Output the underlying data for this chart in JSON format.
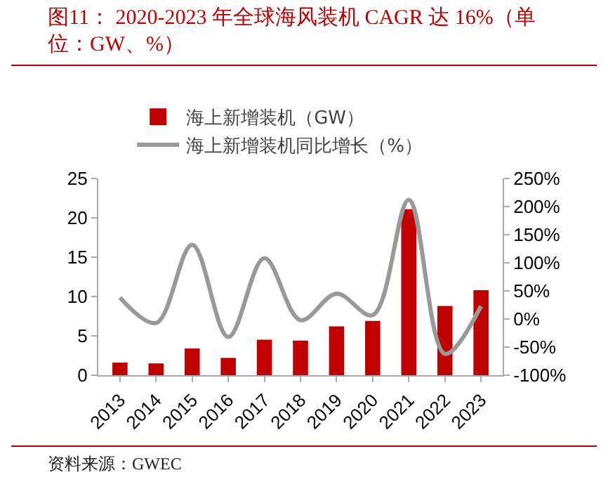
{
  "chart_data": {
    "type": "bar",
    "title": "图11：  2020-2023 年全球海风装机 CAGR 达 16%（单位：GW、%）",
    "annotations": [
      "资料来源：GWEC"
    ],
    "categories": [
      "2013",
      "2014",
      "2015",
      "2016",
      "2017",
      "2018",
      "2019",
      "2020",
      "2021",
      "2022",
      "2023"
    ],
    "series": [
      {
        "name": "海上新增装机（GW）",
        "color": "#c00000",
        "values": [
          1.6,
          1.5,
          3.4,
          2.2,
          4.5,
          4.4,
          6.2,
          6.9,
          21.1,
          8.8,
          10.8
        ]
      },
      {
        "name": "海上新增装机同比增长（%）",
        "type": "line",
        "axis": "y2",
        "color": "#999999",
        "values": [
          38,
          -7,
          132,
          -32,
          108,
          -2,
          45,
          7,
          212,
          -62,
          23
        ]
      }
    ],
    "ylim": [
      0,
      25
    ],
    "yticks": [
      0,
      5,
      10,
      15,
      20,
      25
    ],
    "y2lim": [
      -100,
      250
    ],
    "y2ticks": [
      {
        "value": -100,
        "label": "-100%"
      },
      {
        "value": -50,
        "label": "-50%"
      },
      {
        "value": 0,
        "label": "0%"
      },
      {
        "value": 50,
        "label": "50%"
      },
      {
        "value": 100,
        "label": "100%"
      },
      {
        "value": 150,
        "label": "150%"
      },
      {
        "value": 200,
        "label": "200%"
      },
      {
        "value": 250,
        "label": "250%"
      }
    ],
    "legend": "top",
    "grid": false
  }
}
